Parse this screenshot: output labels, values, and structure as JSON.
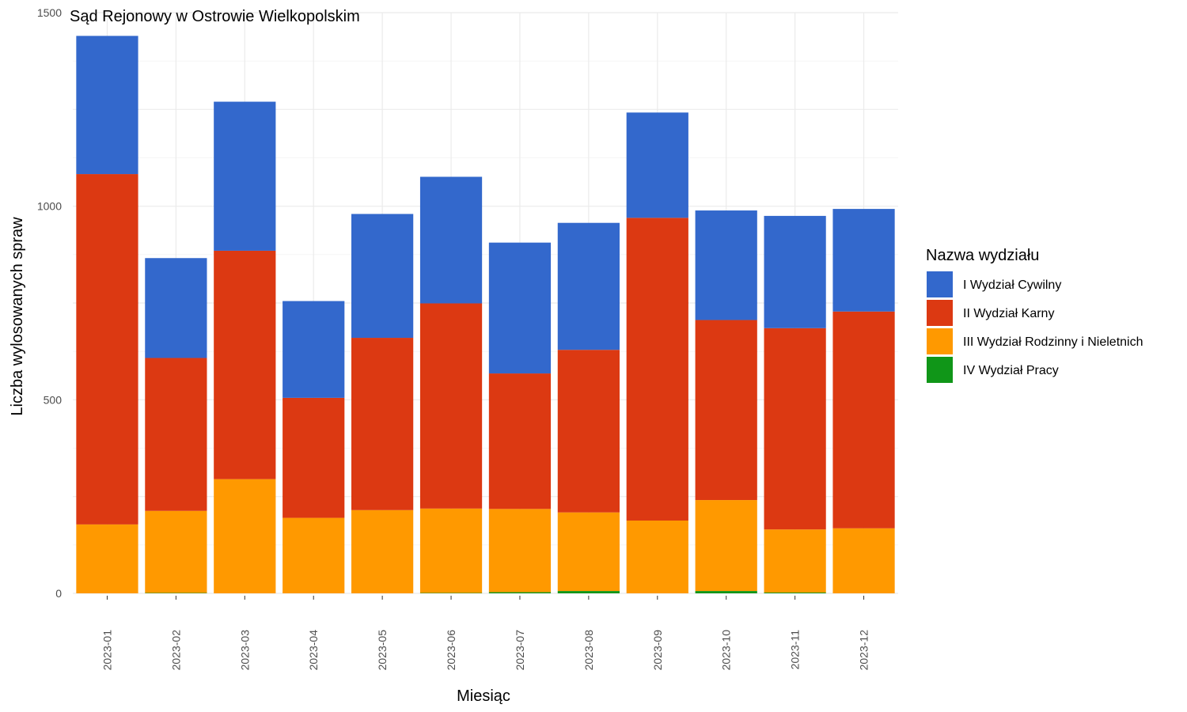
{
  "chart_data": {
    "type": "bar",
    "stacked": true,
    "title": "Sąd Rejonowy w Ostrowie Wielkopolskim",
    "xlabel": "Miesiąc",
    "ylabel": "Liczba wylosowanych spraw",
    "ylim": [
      0,
      1500
    ],
    "yticks": [
      "0",
      "500",
      "1000",
      "1500"
    ],
    "grid": true,
    "legend_position": "right",
    "legend_title": "Nazwa wydziału",
    "categories": [
      "2023-01",
      "2023-02",
      "2023-03",
      "2023-04",
      "2023-05",
      "2023-06",
      "2023-07",
      "2023-08",
      "2023-09",
      "2023-10",
      "2023-11",
      "2023-12"
    ],
    "series": [
      {
        "name": "I Wydział Cywilny",
        "color": "#3368cc",
        "values": [
          357,
          258,
          385,
          250,
          320,
          327,
          338,
          328,
          272,
          283,
          290,
          265
        ]
      },
      {
        "name": "II Wydział Karny",
        "color": "#dc3912",
        "values": [
          905,
          395,
          590,
          310,
          445,
          530,
          350,
          420,
          782,
          465,
          520,
          560
        ]
      },
      {
        "name": "III Wydział Rodzinny i Nieletnich",
        "color": "#ff9900",
        "values": [
          178,
          212,
          295,
          195,
          215,
          218,
          215,
          203,
          188,
          235,
          163,
          168
        ]
      },
      {
        "name": "IV Wydział Pracy",
        "color": "#109618",
        "values": [
          0,
          1,
          0,
          0,
          0,
          1,
          3,
          6,
          0,
          6,
          2,
          0
        ]
      }
    ]
  }
}
